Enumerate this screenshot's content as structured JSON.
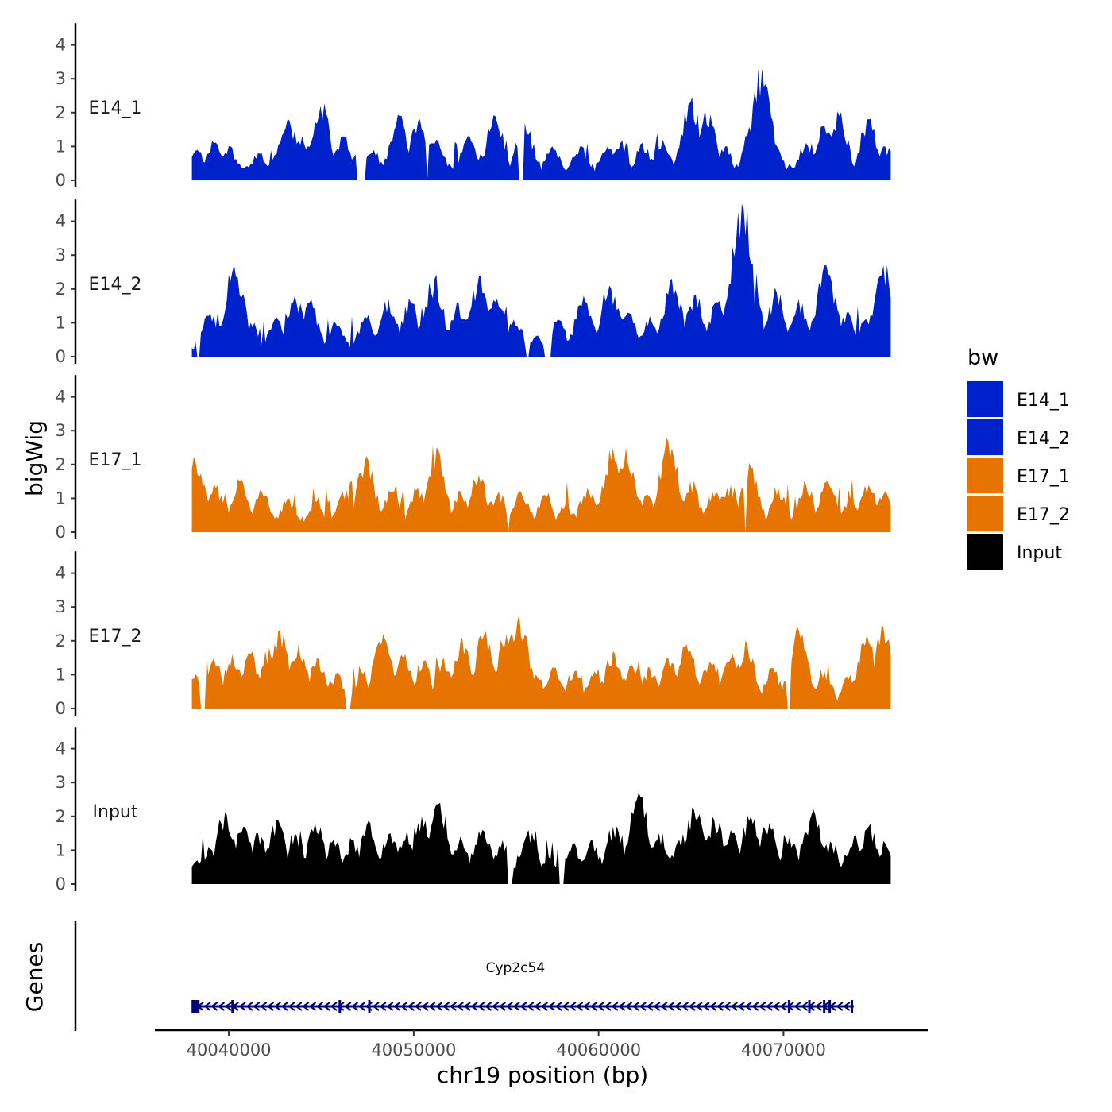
{
  "chart_data": {
    "type": "area",
    "ylabel": "bigWig",
    "xlabel": "chr19 position (bp)",
    "ylim": [
      0,
      4.5
    ],
    "yticks": [
      "0",
      "1",
      "2",
      "3",
      "4"
    ],
    "xlim": [
      40036000,
      40077800
    ],
    "xticks": [
      {
        "value": 40040000,
        "label": "40040000"
      },
      {
        "value": 40050000,
        "label": "40050000"
      },
      {
        "value": 40060000,
        "label": "40060000"
      },
      {
        "value": 40070000,
        "label": "40070000"
      }
    ],
    "data_range": [
      40038000,
      40075800
    ],
    "legend": {
      "title": "bw",
      "position": "right",
      "entries": [
        {
          "label": "E14_1",
          "color": "#0022cc"
        },
        {
          "label": "E14_2",
          "color": "#0022cc"
        },
        {
          "label": "E17_1",
          "color": "#e87400"
        },
        {
          "label": "E17_2",
          "color": "#e87400"
        },
        {
          "label": "Input",
          "color": "#000000"
        }
      ]
    },
    "series": [
      {
        "name": "E14_1",
        "color": "#0022cc",
        "peaks": [
          [
            40038300,
            0.9
          ],
          [
            40039200,
            1.1
          ],
          [
            40040000,
            1.0
          ],
          [
            40041600,
            0.8
          ],
          [
            40042800,
            1.1
          ],
          [
            40043200,
            1.8
          ],
          [
            40044000,
            1.3
          ],
          [
            40045000,
            2.2
          ],
          [
            40046200,
            1.3
          ],
          [
            40047800,
            0.9
          ],
          [
            40049200,
            1.9
          ],
          [
            40050300,
            1.8
          ],
          [
            40051200,
            1.2
          ],
          [
            40053000,
            1.3
          ],
          [
            40054400,
            1.9
          ],
          [
            40056000,
            1.7
          ],
          [
            40057500,
            1.0
          ],
          [
            40059000,
            1.0
          ],
          [
            40060500,
            1.0
          ],
          [
            40061200,
            1.1
          ],
          [
            40062400,
            1.1
          ],
          [
            40063500,
            1.2
          ],
          [
            40065000,
            2.3
          ],
          [
            40065800,
            2.1
          ],
          [
            40066800,
            1.0
          ],
          [
            40068200,
            1.4
          ],
          [
            40068800,
            3.3
          ],
          [
            40069500,
            1.1
          ],
          [
            40071200,
            1.1
          ],
          [
            40072200,
            1.6
          ],
          [
            40073000,
            1.9
          ],
          [
            40074600,
            1.8
          ],
          [
            40075500,
            1.0
          ]
        ],
        "gaps": [
          [
            40046900,
            40047400
          ],
          [
            40050700,
            40050800
          ],
          [
            40055700,
            40056100
          ]
        ]
      },
      {
        "name": "E14_2",
        "color": "#0022cc",
        "peaks": [
          [
            40038100,
            0.2
          ],
          [
            40039000,
            1.3
          ],
          [
            40040300,
            2.7
          ],
          [
            40041200,
            1.0
          ],
          [
            40042500,
            1.1
          ],
          [
            40043600,
            1.8
          ],
          [
            40044400,
            1.6
          ],
          [
            40045800,
            1.0
          ],
          [
            40047400,
            1.2
          ],
          [
            40048600,
            1.7
          ],
          [
            40049800,
            1.6
          ],
          [
            40051100,
            2.3
          ],
          [
            40052400,
            1.6
          ],
          [
            40053600,
            2.4
          ],
          [
            40054500,
            1.7
          ],
          [
            40055400,
            1.1
          ],
          [
            40056600,
            0.6
          ],
          [
            40057800,
            1.1
          ],
          [
            40059200,
            1.8
          ],
          [
            40060600,
            2.1
          ],
          [
            40061600,
            1.3
          ],
          [
            40062800,
            1.2
          ],
          [
            40064000,
            2.3
          ],
          [
            40065200,
            1.8
          ],
          [
            40066400,
            1.6
          ],
          [
            40067800,
            4.4
          ],
          [
            40068400,
            1.5
          ],
          [
            40069600,
            1.9
          ],
          [
            40070800,
            1.7
          ],
          [
            40072300,
            2.7
          ],
          [
            40073400,
            1.3
          ],
          [
            40074500,
            1.1
          ],
          [
            40075400,
            2.7
          ]
        ],
        "gaps": [
          [
            40038200,
            40038400
          ],
          [
            40056100,
            40056300
          ],
          [
            40057000,
            40057400
          ]
        ]
      },
      {
        "name": "E17_1",
        "color": "#e87400",
        "peaks": [
          [
            40038200,
            2.1
          ],
          [
            40039300,
            1.3
          ],
          [
            40040600,
            1.5
          ],
          [
            40041800,
            1.2
          ],
          [
            40043200,
            1.0
          ],
          [
            40044700,
            0.9
          ],
          [
            40046200,
            1.2
          ],
          [
            40047400,
            2.1
          ],
          [
            40048800,
            1.2
          ],
          [
            40050200,
            1.3
          ],
          [
            40051200,
            2.5
          ],
          [
            40052500,
            1.2
          ],
          [
            40053500,
            1.7
          ],
          [
            40054600,
            1.2
          ],
          [
            40055800,
            1.2
          ],
          [
            40057100,
            1.1
          ],
          [
            40058200,
            0.8
          ],
          [
            40059400,
            1.3
          ],
          [
            40060800,
            2.5
          ],
          [
            40061500,
            2.5
          ],
          [
            40062600,
            1.1
          ],
          [
            40063800,
            2.7
          ],
          [
            40065000,
            1.5
          ],
          [
            40066200,
            1.2
          ],
          [
            40067100,
            1.4
          ],
          [
            40068200,
            1.9
          ],
          [
            40069700,
            1.3
          ],
          [
            40071200,
            1.4
          ],
          [
            40072400,
            1.5
          ],
          [
            40073600,
            1.0
          ],
          [
            40074600,
            1.4
          ],
          [
            40075500,
            1.2
          ]
        ],
        "gaps": [
          [
            40055100,
            40055150
          ],
          [
            40062200,
            40062250
          ],
          [
            40067900,
            40067950
          ]
        ]
      },
      {
        "name": "E17_2",
        "color": "#e87400",
        "peaks": [
          [
            40038200,
            1.0
          ],
          [
            40039200,
            1.5
          ],
          [
            40040200,
            1.6
          ],
          [
            40041200,
            1.6
          ],
          [
            40042200,
            1.8
          ],
          [
            40042800,
            2.3
          ],
          [
            40043800,
            1.9
          ],
          [
            40044800,
            1.5
          ],
          [
            40045800,
            1.0
          ],
          [
            40047200,
            1.1
          ],
          [
            40048300,
            2.2
          ],
          [
            40049500,
            1.6
          ],
          [
            40050500,
            1.4
          ],
          [
            40051600,
            1.5
          ],
          [
            40052600,
            2.1
          ],
          [
            40053800,
            2.2
          ],
          [
            40055000,
            2.2
          ],
          [
            40055700,
            2.8
          ],
          [
            40056600,
            1.0
          ],
          [
            40057600,
            1.2
          ],
          [
            40058700,
            1.1
          ],
          [
            40059800,
            1.1
          ],
          [
            40060800,
            1.7
          ],
          [
            40061800,
            1.3
          ],
          [
            40062800,
            1.2
          ],
          [
            40063800,
            1.5
          ],
          [
            40064800,
            1.9
          ],
          [
            40066000,
            1.4
          ],
          [
            40067200,
            1.6
          ],
          [
            40068000,
            1.9
          ],
          [
            40069400,
            1.2
          ],
          [
            40070800,
            2.3
          ],
          [
            40072200,
            1.1
          ],
          [
            40073600,
            1.0
          ],
          [
            40074500,
            2.2
          ],
          [
            40075400,
            2.4
          ]
        ],
        "gaps": [
          [
            40038400,
            40038700
          ],
          [
            40046300,
            40046600
          ],
          [
            40070150,
            40070350
          ]
        ]
      },
      {
        "name": "Input",
        "color": "#000000",
        "peaks": [
          [
            40038300,
            0.7
          ],
          [
            40039100,
            1.0
          ],
          [
            40039800,
            2.1
          ],
          [
            40040800,
            1.7
          ],
          [
            40041600,
            1.5
          ],
          [
            40042600,
            1.9
          ],
          [
            40043600,
            1.5
          ],
          [
            40044700,
            1.8
          ],
          [
            40045700,
            1.3
          ],
          [
            40046700,
            1.3
          ],
          [
            40047600,
            1.8
          ],
          [
            40048700,
            1.5
          ],
          [
            40049600,
            1.6
          ],
          [
            40050400,
            2.0
          ],
          [
            40051400,
            2.4
          ],
          [
            40052500,
            1.4
          ],
          [
            40053700,
            1.6
          ],
          [
            40054800,
            1.3
          ],
          [
            40056200,
            1.6
          ],
          [
            40057300,
            0.8
          ],
          [
            40058600,
            1.2
          ],
          [
            40059600,
            1.3
          ],
          [
            40060800,
            1.7
          ],
          [
            40062200,
            2.7
          ],
          [
            40063300,
            1.5
          ],
          [
            40064400,
            1.3
          ],
          [
            40065200,
            2.2
          ],
          [
            40066300,
            1.9
          ],
          [
            40067200,
            1.5
          ],
          [
            40068200,
            2.0
          ],
          [
            40069200,
            1.8
          ],
          [
            40070300,
            1.4
          ],
          [
            40071600,
            2.2
          ],
          [
            40072600,
            1.2
          ],
          [
            40073800,
            1.4
          ],
          [
            40074600,
            1.7
          ],
          [
            40075500,
            1.2
          ]
        ],
        "gaps": [
          [
            40055100,
            40055350
          ],
          [
            40057800,
            40058100
          ]
        ]
      }
    ],
    "genes": {
      "title": "Genes",
      "label": "Cyp2c54",
      "label_position": 40055500,
      "start": 40038000,
      "end": 40073800,
      "strand": "-",
      "color": "#000080",
      "exons": [
        40038200,
        40040200,
        40046000,
        40047600,
        40070300,
        40071400,
        40072200,
        40072500,
        40073700
      ]
    }
  }
}
